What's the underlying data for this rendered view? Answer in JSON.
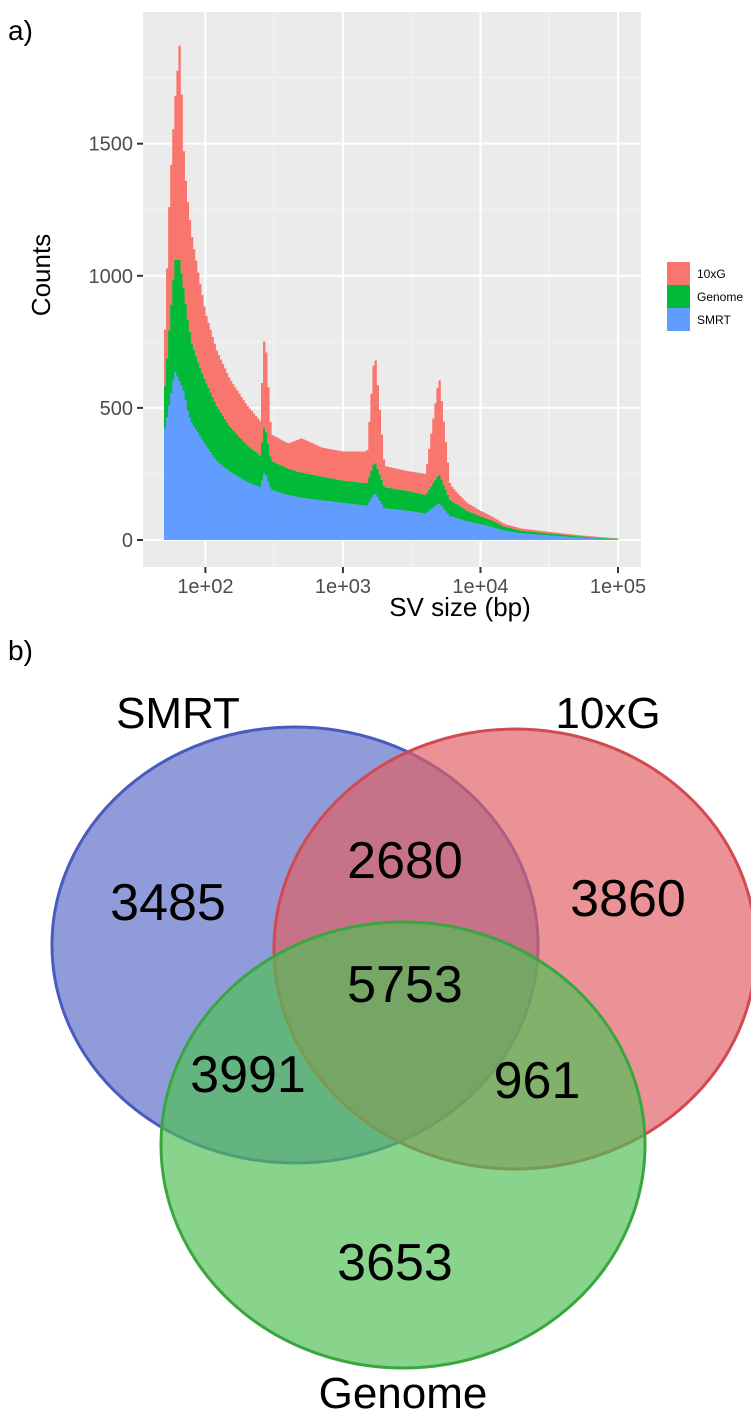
{
  "panel_labels": {
    "a": "a)",
    "b": "b)"
  },
  "chart_data": [
    {
      "type": "bar",
      "stacked": true,
      "xlabel": "SV size (bp)",
      "ylabel": "Counts",
      "x_scale": "log10",
      "xlim": [
        50,
        100000
      ],
      "ylim": [
        0,
        1900
      ],
      "x_ticks": [
        {
          "value": 100,
          "label": "1e+02"
        },
        {
          "value": 1000,
          "label": "1e+03"
        },
        {
          "value": 10000,
          "label": "1e+04"
        },
        {
          "value": 100000,
          "label": "1e+05"
        }
      ],
      "y_ticks": [
        {
          "value": 0,
          "label": "0"
        },
        {
          "value": 500,
          "label": "500"
        },
        {
          "value": 1000,
          "label": "1000"
        },
        {
          "value": 1500,
          "label": "1500"
        }
      ],
      "grid": true,
      "legend_position": "right",
      "series_colors": {
        "10xG": "#f8766d",
        "Genome": "#00ba38",
        "SMRT": "#619cff"
      },
      "legend": [
        {
          "name": "10xG",
          "color": "#f8766d"
        },
        {
          "name": "Genome",
          "color": "#00ba38"
        },
        {
          "name": "SMRT",
          "color": "#619cff"
        }
      ],
      "series": [
        {
          "name": "SMRT",
          "points": [
            [
              50,
              400
            ],
            [
              55,
              520
            ],
            [
              60,
              640
            ],
            [
              65,
              600
            ],
            [
              70,
              560
            ],
            [
              75,
              480
            ],
            [
              80,
              440
            ],
            [
              90,
              400
            ],
            [
              100,
              360
            ],
            [
              120,
              300
            ],
            [
              150,
              260
            ],
            [
              200,
              220
            ],
            [
              250,
              200
            ],
            [
              270,
              260
            ],
            [
              300,
              190
            ],
            [
              400,
              170
            ],
            [
              500,
              160
            ],
            [
              700,
              150
            ],
            [
              1000,
              140
            ],
            [
              1500,
              130
            ],
            [
              1700,
              180
            ],
            [
              2000,
              120
            ],
            [
              3000,
              110
            ],
            [
              4000,
              100
            ],
            [
              5000,
              140
            ],
            [
              6000,
              90
            ],
            [
              7000,
              80
            ],
            [
              8000,
              70
            ],
            [
              10000,
              60
            ],
            [
              12000,
              50
            ],
            [
              15000,
              35
            ],
            [
              20000,
              25
            ],
            [
              30000,
              18
            ],
            [
              50000,
              10
            ],
            [
              70000,
              6
            ],
            [
              100000,
              3
            ]
          ]
        },
        {
          "name": "Genome",
          "points": [
            [
              50,
              130
            ],
            [
              55,
              300
            ],
            [
              60,
              420
            ],
            [
              65,
              460
            ],
            [
              70,
              380
            ],
            [
              75,
              340
            ],
            [
              80,
              300
            ],
            [
              90,
              260
            ],
            [
              100,
              240
            ],
            [
              120,
              210
            ],
            [
              150,
              170
            ],
            [
              200,
              140
            ],
            [
              250,
              120
            ],
            [
              270,
              180
            ],
            [
              300,
              110
            ],
            [
              400,
              100
            ],
            [
              500,
              95
            ],
            [
              700,
              90
            ],
            [
              1000,
              85
            ],
            [
              1500,
              85
            ],
            [
              1700,
              120
            ],
            [
              2000,
              80
            ],
            [
              3000,
              75
            ],
            [
              4000,
              70
            ],
            [
              5000,
              110
            ],
            [
              6000,
              60
            ],
            [
              7000,
              50
            ],
            [
              8000,
              40
            ],
            [
              10000,
              30
            ],
            [
              12000,
              25
            ],
            [
              15000,
              15
            ],
            [
              20000,
              10
            ],
            [
              30000,
              8
            ],
            [
              50000,
              5
            ],
            [
              70000,
              3
            ],
            [
              100000,
              2
            ]
          ]
        },
        {
          "name": "10xG",
          "points": [
            [
              50,
              150
            ],
            [
              55,
              500
            ],
            [
              60,
              600
            ],
            [
              65,
              820
            ],
            [
              70,
              480
            ],
            [
              75,
              440
            ],
            [
              80,
              400
            ],
            [
              90,
              330
            ],
            [
              100,
              260
            ],
            [
              120,
              210
            ],
            [
              150,
              180
            ],
            [
              200,
              150
            ],
            [
              250,
              130
            ],
            [
              270,
              360
            ],
            [
              300,
              100
            ],
            [
              400,
              95
            ],
            [
              500,
              130
            ],
            [
              700,
              110
            ],
            [
              1000,
              110
            ],
            [
              1500,
              120
            ],
            [
              1700,
              420
            ],
            [
              2000,
              80
            ],
            [
              3000,
              75
            ],
            [
              4000,
              80
            ],
            [
              5000,
              370
            ],
            [
              6000,
              60
            ],
            [
              7000,
              40
            ],
            [
              8000,
              30
            ],
            [
              10000,
              20
            ],
            [
              12000,
              15
            ],
            [
              15000,
              10
            ],
            [
              20000,
              8
            ],
            [
              30000,
              6
            ],
            [
              50000,
              4
            ],
            [
              70000,
              3
            ],
            [
              100000,
              1
            ]
          ]
        }
      ]
    },
    {
      "type": "venn",
      "sets": [
        {
          "name": "SMRT",
          "color": "#5b6cc9"
        },
        {
          "name": "10xG",
          "color": "#e05f63"
        },
        {
          "name": "Genome",
          "color": "#4fbf55"
        }
      ],
      "regions": [
        {
          "sets": [
            "SMRT"
          ],
          "value": "3485"
        },
        {
          "sets": [
            "10xG"
          ],
          "value": "3860"
        },
        {
          "sets": [
            "Genome"
          ],
          "value": "3653"
        },
        {
          "sets": [
            "SMRT",
            "10xG"
          ],
          "value": "2680"
        },
        {
          "sets": [
            "SMRT",
            "Genome"
          ],
          "value": "3991"
        },
        {
          "sets": [
            "10xG",
            "Genome"
          ],
          "value": "961"
        },
        {
          "sets": [
            "SMRT",
            "10xG",
            "Genome"
          ],
          "value": "5753"
        }
      ]
    }
  ]
}
